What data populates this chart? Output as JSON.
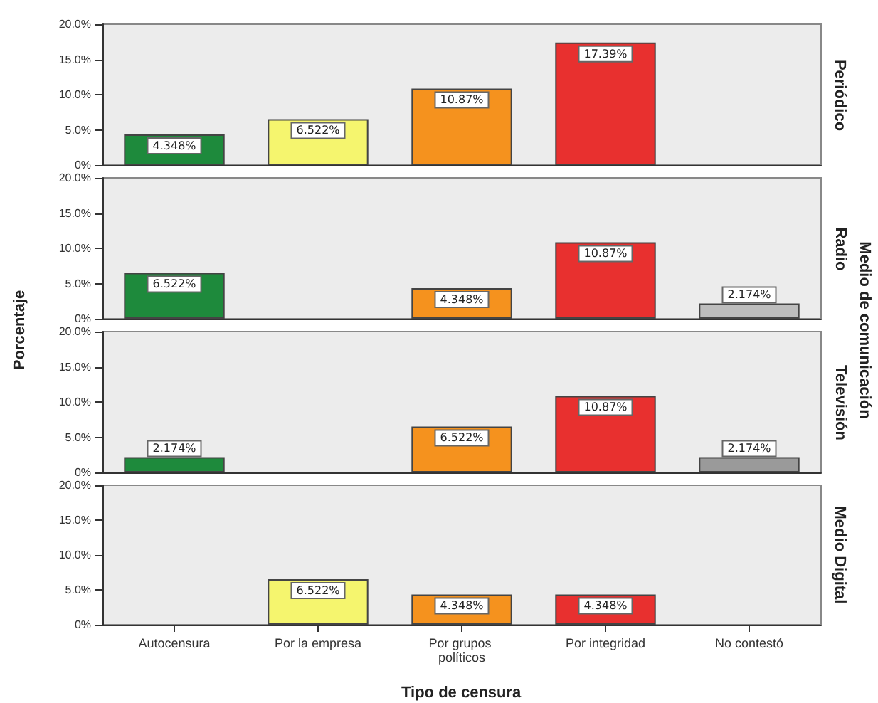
{
  "chart_data": [
    {
      "type": "bar",
      "y2label": "Periódico",
      "categories": [
        "Autocensura",
        "Por la empresa",
        "Por grupos políticos",
        "Por integridad",
        "No contestó"
      ],
      "values": [
        4.348,
        6.522,
        10.87,
        17.39,
        null
      ],
      "colors": [
        "#1e8a3c",
        "#f5f56e",
        "#f5921e",
        "#e8302f",
        "#b4b4b4"
      ],
      "value_labels": [
        "4.348%",
        "6.522%",
        "10.87%",
        "17.39%",
        null
      ],
      "ylim": [
        0,
        20
      ],
      "yticks": [
        {
          "value": 0,
          "label": "0%"
        },
        {
          "value": 5,
          "label": "5.0%"
        },
        {
          "value": 10,
          "label": "10.0%"
        },
        {
          "value": 15,
          "label": "15.0%"
        },
        {
          "value": 20,
          "label": "20.0%"
        }
      ],
      "tick_labels": "y",
      "grid": false
    },
    {
      "type": "bar",
      "y2label": "Radio",
      "categories": [
        "Autocensura",
        "Por la empresa",
        "Por grupos políticos",
        "Por integridad",
        "No contestó"
      ],
      "values": [
        6.522,
        null,
        4.348,
        10.87,
        2.174
      ],
      "colors": [
        "#1e8a3c",
        "#f5f56e",
        "#f5921e",
        "#e8302f",
        "#bdbdbd"
      ],
      "value_labels": [
        "6.522%",
        null,
        "4.348%",
        "10.87%",
        "2.174%"
      ],
      "ylim": [
        0,
        20
      ],
      "yticks": [
        {
          "value": 0,
          "label": "0%"
        },
        {
          "value": 5,
          "label": "5.0%"
        },
        {
          "value": 10,
          "label": "10.0%"
        },
        {
          "value": 15,
          "label": "15.0%"
        },
        {
          "value": 20,
          "label": "20.0%"
        }
      ],
      "tick_labels": "y",
      "grid": false
    },
    {
      "type": "bar",
      "y2label": "Televisión",
      "ylabel": "Porcentaje",
      "annotations": [
        "Medio de comunicación"
      ],
      "categories": [
        "Autocensura",
        "Por la empresa",
        "Por grupos políticos",
        "Por integridad",
        "No contestó"
      ],
      "values": [
        2.174,
        null,
        6.522,
        10.87,
        2.174
      ],
      "colors": [
        "#1e8a3c",
        "#f5f56e",
        "#f5921e",
        "#e8302f",
        "#9a9a9a"
      ],
      "value_labels": [
        "2.174%",
        null,
        "6.522%",
        "10.87%",
        "2.174%"
      ],
      "ylim": [
        0,
        20
      ],
      "yticks": [
        {
          "value": 0,
          "label": "0%"
        },
        {
          "value": 5,
          "label": "5.0%"
        },
        {
          "value": 10,
          "label": "10.0%"
        },
        {
          "value": 15,
          "label": "15.0%"
        },
        {
          "value": 20,
          "label": "20.0%"
        }
      ],
      "tick_labels": "y",
      "grid": false
    },
    {
      "type": "bar",
      "y2label": "Medio Digital",
      "xlabel": "Tipo de censura",
      "categories": [
        "Autocensura",
        "Por la empresa",
        "Por grupos políticos",
        "Por integridad",
        "No contestó"
      ],
      "values": [
        null,
        6.522,
        4.348,
        4.348,
        null
      ],
      "colors": [
        "#1e8a3c",
        "#f5f56e",
        "#f5921e",
        "#e8302f",
        "#9a9a9a"
      ],
      "value_labels": [
        null,
        "6.522%",
        "4.348%",
        "4.348%",
        null
      ],
      "ylim": [
        0,
        20
      ],
      "yticks": [
        {
          "value": 0,
          "label": "0%"
        },
        {
          "value": 5,
          "label": "5.0%"
        },
        {
          "value": 10,
          "label": "10.0%"
        },
        {
          "value": 15,
          "label": "15.0%"
        },
        {
          "value": 20,
          "label": "20.0%"
        }
      ],
      "grid": false
    }
  ]
}
